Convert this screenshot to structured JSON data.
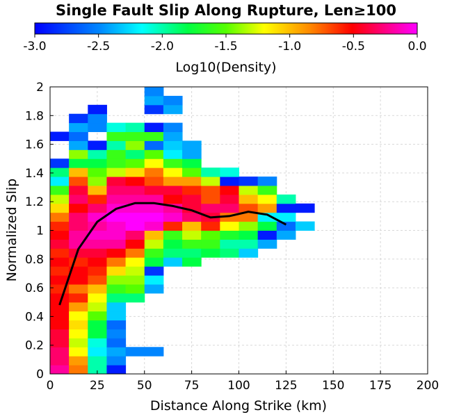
{
  "chart_data": {
    "type": "heatmap",
    "title": "Single Fault Slip Along Rupture, Len≥100",
    "xlabel": "Distance Along Strike (km)",
    "ylabel": "Normalized Slip",
    "xlim": [
      0,
      200
    ],
    "ylim": [
      0,
      2
    ],
    "x_ticks": [
      "0",
      "25",
      "50",
      "75",
      "100",
      "125",
      "150",
      "175",
      "200"
    ],
    "y_ticks": [
      "0",
      "0.2",
      "0.4",
      "0.6",
      "0.8",
      "1",
      "1.2",
      "1.4",
      "1.6",
      "1.8",
      "2"
    ],
    "grid": true,
    "colorbar": {
      "label": "Log10(Density)",
      "range": [
        -3.0,
        0.0
      ],
      "ticks": [
        "-3.0",
        "-2.5",
        "-2.0",
        "-1.5",
        "-1.0",
        "-0.5",
        "0.0"
      ],
      "placement": "top",
      "colorscale": "rainbow blue-cyan-green-yellow-red-magenta"
    },
    "bin_width_x": 10,
    "bin_height_y": 0.0625,
    "cell_y_start": 0,
    "columns": [
      {
        "x": 0,
        "values": [
          -0.2,
          -0.3,
          -0.3,
          -0.4,
          -0.4,
          -0.5,
          -0.5,
          -0.5,
          -0.5,
          -0.6,
          -0.5,
          -0.6,
          -0.5,
          -0.6,
          -0.4,
          -0.5,
          -0.6,
          -0.8,
          -1.1,
          -1.3,
          -1.6,
          -2.2,
          -1.9,
          -2.8,
          null,
          null,
          -2.9,
          null,
          null,
          null,
          null,
          null
        ]
      },
      {
        "x": 10,
        "values": [
          -0.8,
          -0.9,
          -1.2,
          -1.3,
          -1.2,
          -1.1,
          -1.2,
          -0.9,
          -0.6,
          -0.8,
          -0.5,
          -0.5,
          -0.6,
          -0.4,
          -0.2,
          -0.2,
          -0.3,
          -0.3,
          -0.5,
          -0.3,
          -0.4,
          -0.7,
          -1.0,
          -1.8,
          -1.4,
          -2.4,
          -2.6,
          -2.4,
          -2.8,
          null,
          null,
          null
        ]
      },
      {
        "x": 20,
        "values": [
          -2.0,
          -2.0,
          -2.2,
          -2.1,
          -1.8,
          -1.8,
          -1.5,
          -1.3,
          -1.2,
          -1.0,
          -0.7,
          -0.6,
          -0.5,
          -0.4,
          -0.2,
          -0.1,
          -0.2,
          -0.1,
          -0.3,
          -0.6,
          -1.0,
          -1.4,
          -1.5,
          -1.8,
          -2.0,
          -2.9,
          null,
          -2.5,
          -2.5,
          -2.9,
          null,
          null
        ]
      },
      {
        "x": 30,
        "values": [
          -2.9,
          -2.5,
          -2.4,
          -2.6,
          -2.5,
          -2.6,
          -2.3,
          -2.3,
          -1.9,
          -1.6,
          -1.4,
          -1.1,
          -0.8,
          -0.5,
          -0.2,
          -0.1,
          -0.1,
          -0.0,
          -0.1,
          -0.2,
          -0.3,
          -0.4,
          -1.3,
          -1.6,
          -1.6,
          -2.0,
          -1.6,
          -2.1,
          null,
          null,
          null,
          null
        ]
      },
      {
        "x": 40,
        "values": [
          null,
          null,
          -2.5,
          null,
          null,
          null,
          null,
          null,
          -1.9,
          -1.5,
          -1.4,
          -1.3,
          -1.2,
          -0.8,
          -0.5,
          -0.3,
          -0.0,
          -0.0,
          -0.1,
          -0.2,
          -0.3,
          -0.5,
          -1.1,
          -1.5,
          -1.9,
          -1.4,
          -1.6,
          -2.0,
          null,
          null,
          null,
          null
        ]
      },
      {
        "x": 50,
        "values": [
          null,
          null,
          -2.5,
          null,
          null,
          null,
          null,
          null,
          null,
          -2.4,
          -2.2,
          -2.8,
          -1.8,
          -1.6,
          -1.3,
          -1.0,
          -0.1,
          -0.0,
          -0.1,
          -0.2,
          -0.4,
          -0.7,
          -0.8,
          -1.2,
          -1.5,
          -2.6,
          -1.6,
          -2.9,
          null,
          -2.8,
          -2.4,
          -2.5
        ]
      },
      {
        "x": 60,
        "values": [
          null,
          null,
          null,
          null,
          null,
          null,
          null,
          null,
          null,
          null,
          null,
          null,
          -2.3,
          -1.9,
          -1.8,
          -1.6,
          -0.6,
          -0.1,
          -0.2,
          -0.5,
          -0.4,
          -0.9,
          -1.2,
          -1.6,
          -2.2,
          -2.3,
          -2.4,
          -2.5,
          null,
          -2.4,
          -2.5,
          null
        ]
      },
      {
        "x": 70,
        "values": [
          null,
          null,
          null,
          null,
          null,
          null,
          null,
          null,
          null,
          null,
          null,
          null,
          -1.8,
          -1.9,
          -1.6,
          -1.3,
          -1.0,
          -0.3,
          -0.4,
          -0.4,
          -0.6,
          -0.9,
          -1.5,
          -1.8,
          -2.4,
          -2.4,
          null,
          null,
          null,
          null,
          null,
          null
        ]
      },
      {
        "x": 80,
        "values": [
          null,
          null,
          null,
          null,
          null,
          null,
          null,
          null,
          null,
          null,
          null,
          null,
          null,
          -1.8,
          -1.6,
          -1.5,
          -0.6,
          -0.4,
          -0.3,
          -0.7,
          -0.7,
          -1.3,
          -2.0,
          null,
          null,
          null,
          null,
          null,
          null,
          null,
          null,
          null
        ]
      },
      {
        "x": 90,
        "values": [
          null,
          null,
          null,
          null,
          null,
          null,
          null,
          null,
          null,
          null,
          null,
          null,
          null,
          -1.9,
          -2.0,
          -1.7,
          -1.2,
          -0.8,
          -0.3,
          -0.4,
          -0.5,
          -2.9,
          -2.1,
          null,
          null,
          null,
          null,
          null,
          null,
          null,
          null,
          null
        ]
      },
      {
        "x": 100,
        "values": [
          null,
          null,
          null,
          null,
          null,
          null,
          null,
          null,
          null,
          null,
          null,
          null,
          null,
          -2.3,
          -2.0,
          -1.8,
          -1.4,
          -0.8,
          -0.7,
          -1.0,
          -1.3,
          -2.8,
          null,
          null,
          null,
          null,
          null,
          null,
          null,
          null,
          null,
          null
        ]
      },
      {
        "x": 110,
        "values": [
          null,
          null,
          null,
          null,
          null,
          null,
          null,
          null,
          null,
          null,
          null,
          null,
          null,
          null,
          -2.4,
          -2.9,
          -1.8,
          -2.2,
          -0.9,
          -1.2,
          -1.6,
          -2.5,
          null,
          null,
          null,
          null,
          null,
          null,
          null,
          null,
          null,
          null
        ]
      },
      {
        "x": 120,
        "values": [
          null,
          null,
          null,
          null,
          null,
          null,
          null,
          null,
          null,
          null,
          null,
          null,
          null,
          null,
          null,
          -2.4,
          -2.6,
          -2.2,
          -2.9,
          -2.0,
          null,
          null,
          null,
          null,
          null,
          null,
          null,
          null,
          null,
          null,
          null,
          null
        ]
      },
      {
        "x": 130,
        "values": [
          null,
          null,
          null,
          null,
          null,
          null,
          null,
          null,
          null,
          null,
          null,
          null,
          null,
          null,
          null,
          null,
          -2.3,
          null,
          -2.9,
          null,
          null,
          null,
          null,
          null,
          null,
          null,
          null,
          null,
          null,
          null,
          null,
          null
        ]
      }
    ],
    "line": {
      "color": "#000000",
      "x": [
        5,
        15,
        25,
        35,
        45,
        55,
        65,
        75,
        85,
        95,
        105,
        115,
        125
      ],
      "y": [
        0.48,
        0.87,
        1.06,
        1.15,
        1.19,
        1.19,
        1.17,
        1.14,
        1.09,
        1.1,
        1.13,
        1.11,
        1.04
      ]
    }
  }
}
